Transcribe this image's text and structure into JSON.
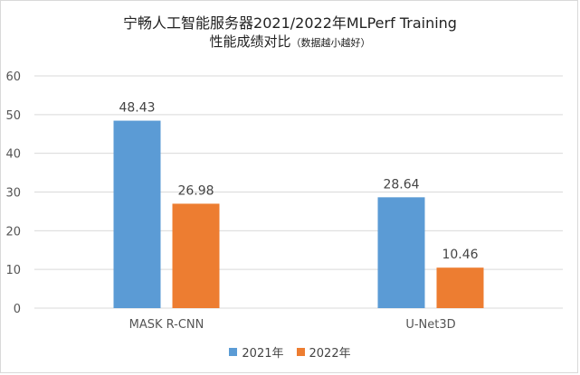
{
  "chart_data": {
    "type": "bar",
    "title": "宁畅人工智能服务器2021/2022年MLPerf Training",
    "subtitle": "性能成绩对比",
    "subtitle_note": "（数据越小越好）",
    "categories": [
      "MASK R-CNN",
      "U-Net3D"
    ],
    "series": [
      {
        "name": "2021年",
        "color": "#5b9bd5",
        "values": [
          48.43,
          28.64
        ]
      },
      {
        "name": "2022年",
        "color": "#ed7d31",
        "values": [
          26.98,
          10.46
        ]
      }
    ],
    "ylim": [
      0,
      60
    ],
    "yticks": [
      0,
      10,
      20,
      30,
      40,
      50,
      60
    ],
    "grid": true,
    "legend_position": "bottom",
    "data_labels": true
  }
}
